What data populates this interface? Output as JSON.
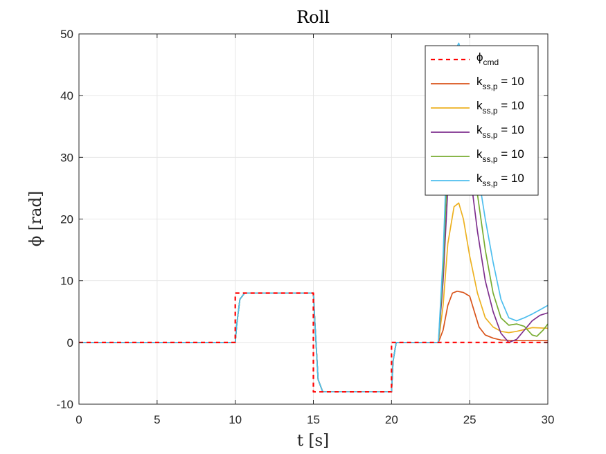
{
  "chart_data": {
    "type": "line",
    "title": "Roll",
    "xlabel": "t [s]",
    "ylabel": "ϕ [rad]",
    "xlim": [
      0,
      30
    ],
    "ylim": [
      -10,
      50
    ],
    "xticks": [
      0,
      5,
      10,
      15,
      20,
      25,
      30
    ],
    "yticks": [
      -10,
      0,
      10,
      20,
      30,
      40,
      50
    ],
    "grid": true,
    "legend_position": "top-right",
    "series": [
      {
        "name": "ϕcmd",
        "legend_main": "ϕ",
        "legend_sub": "cmd",
        "legend_suffix": "",
        "color": "#ff0000",
        "dashed": true,
        "x": [
          0,
          10,
          10,
          15,
          15,
          20,
          20,
          30
        ],
        "y": [
          0,
          0,
          8,
          8,
          -8,
          -8,
          0,
          0
        ]
      },
      {
        "name": "kss,p = 10",
        "legend_main": "k",
        "legend_sub": "ss,p",
        "legend_suffix": " = 10",
        "color": "#d95319",
        "dashed": false,
        "x": [
          0,
          10,
          10.1,
          10.3,
          10.6,
          15,
          15.1,
          15.3,
          15.6,
          20,
          20.1,
          20.3,
          20.6,
          23,
          23.3,
          23.6,
          23.9,
          24.2,
          24.6,
          25,
          25.3,
          25.6,
          26,
          26.5,
          27,
          28,
          29,
          30
        ],
        "y": [
          0,
          0,
          3,
          7,
          8,
          8,
          3,
          -6,
          -8,
          -8,
          -3,
          0,
          0,
          0,
          2,
          6,
          8,
          8.3,
          8.1,
          7.5,
          5,
          2.5,
          1.2,
          0.7,
          0.4,
          0.3,
          0.3,
          0.3
        ]
      },
      {
        "name": "kss,p = 10",
        "legend_main": "k",
        "legend_sub": "ss,p",
        "legend_suffix": " = 10",
        "color": "#edb120",
        "dashed": false,
        "x": [
          0,
          10,
          10.1,
          10.3,
          10.6,
          15,
          15.1,
          15.3,
          15.6,
          20,
          20.1,
          20.3,
          20.6,
          23,
          23.3,
          23.6,
          24,
          24.3,
          24.6,
          25,
          25.5,
          26,
          26.5,
          27,
          27.5,
          28,
          29,
          30
        ],
        "y": [
          0,
          0,
          3,
          7,
          8,
          8,
          3,
          -6,
          -8,
          -8,
          -3,
          0,
          0,
          0,
          6,
          16,
          22,
          22.6,
          20,
          14,
          8,
          4,
          2.5,
          1.8,
          1.6,
          1.8,
          2.4,
          2.3
        ]
      },
      {
        "name": "kss,p = 10",
        "legend_main": "k",
        "legend_sub": "ss,p",
        "legend_suffix": " = 10",
        "color": "#7e2f8e",
        "dashed": false,
        "x": [
          0,
          10,
          10.1,
          10.3,
          10.6,
          15,
          15.1,
          15.3,
          15.6,
          20,
          20.1,
          20.3,
          20.6,
          23,
          23.3,
          23.6,
          24,
          24.3,
          24.6,
          25,
          25.5,
          26,
          26.5,
          27,
          27.5,
          28,
          28.5,
          29,
          29.5,
          30
        ],
        "y": [
          0,
          0,
          3,
          7,
          8,
          8,
          3,
          -6,
          -8,
          -8,
          -3,
          0,
          0,
          0,
          10,
          25,
          38,
          42,
          38,
          28,
          18,
          10,
          5,
          1.5,
          0,
          0.5,
          2,
          3.5,
          4.4,
          4.8
        ]
      },
      {
        "name": "kss,p = 10",
        "legend_main": "k",
        "legend_sub": "ss,p",
        "legend_suffix": " = 10",
        "color": "#77ac30",
        "dashed": false,
        "x": [
          0,
          10,
          10.1,
          10.3,
          10.6,
          15,
          15.1,
          15.3,
          15.6,
          20,
          20.1,
          20.3,
          20.6,
          23,
          23.3,
          23.6,
          24,
          24.3,
          24.6,
          25,
          25.5,
          26,
          26.5,
          27,
          27.5,
          28,
          28.5,
          29,
          29.3,
          29.7,
          30
        ],
        "y": [
          0,
          0,
          3,
          7,
          8,
          8,
          3,
          -6,
          -8,
          -8,
          -3,
          0,
          0,
          0,
          12,
          30,
          44,
          47,
          44,
          34,
          24,
          15,
          8,
          4,
          2.8,
          3,
          2.6,
          1.2,
          1,
          2,
          3
        ]
      },
      {
        "name": "kss,p = 10",
        "legend_main": "k",
        "legend_sub": "ss,p",
        "legend_suffix": " = 10",
        "color": "#4dbeee",
        "dashed": false,
        "x": [
          0,
          10,
          10.1,
          10.3,
          10.6,
          15,
          15.1,
          15.3,
          15.6,
          20,
          20.1,
          20.3,
          20.6,
          23,
          23.3,
          23.6,
          24,
          24.3,
          24.6,
          25,
          25.5,
          26,
          26.5,
          27,
          27.5,
          28,
          28.5,
          29,
          29.5,
          30
        ],
        "y": [
          0,
          0,
          3,
          7,
          8,
          8,
          3,
          -6,
          -8,
          -8,
          -3,
          0,
          0,
          0,
          14,
          35,
          47,
          48.5,
          46,
          38,
          28,
          20,
          13,
          7,
          4,
          3.5,
          4,
          4.6,
          5.3,
          6
        ]
      }
    ]
  }
}
